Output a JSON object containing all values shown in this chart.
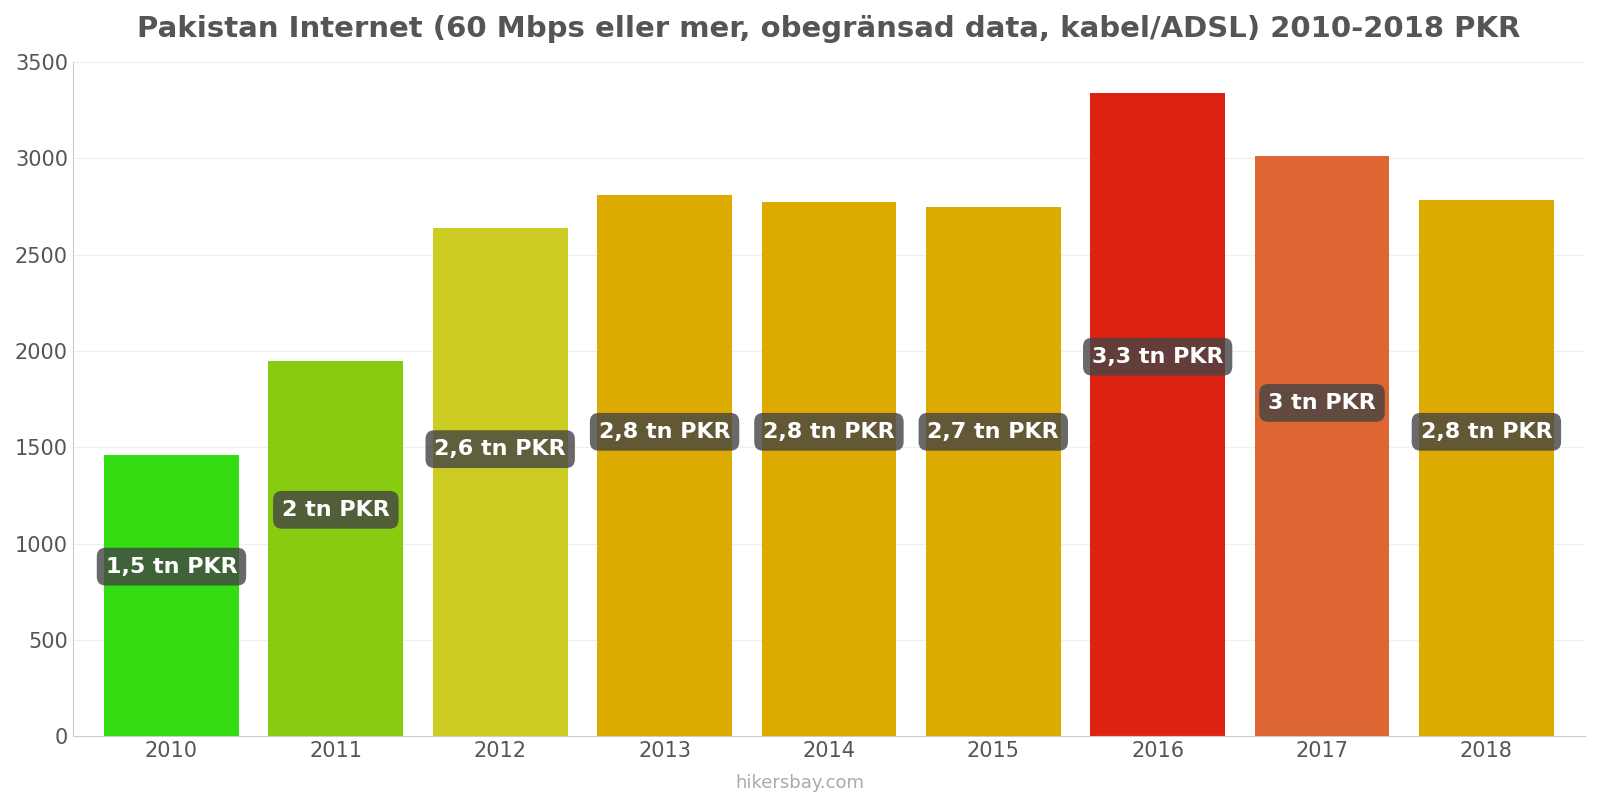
{
  "title": "Pakistan Internet (60 Mbps eller mer, obegränsad data, kabel/ADSL) 2010-2018 PKR",
  "years": [
    2010,
    2011,
    2012,
    2013,
    2014,
    2015,
    2016,
    2017,
    2018
  ],
  "values": [
    1460,
    1950,
    2640,
    2810,
    2775,
    2745,
    3340,
    3010,
    2785
  ],
  "bar_colors": [
    "#33dd11",
    "#88cc11",
    "#cccc22",
    "#ddaa00",
    "#ddaa00",
    "#ddaa00",
    "#dd2211",
    "#dd6633",
    "#ddaa00"
  ],
  "labels": [
    "1,5 tn PKR",
    "2 tn PKR",
    "2,6 tn PKR",
    "2,8 tn PKR",
    "2,8 tn PKR",
    "2,7 tn PKR",
    "3,3 tn PKR",
    "3 tn PKR",
    "2,8 tn PKR"
  ],
  "label_y_positions": [
    880,
    1175,
    1490,
    1580,
    1580,
    1580,
    1970,
    1730,
    1580
  ],
  "ylim": [
    0,
    3500
  ],
  "yticks": [
    0,
    500,
    1000,
    1500,
    2000,
    2500,
    3000,
    3500
  ],
  "footer": "hikersbay.com",
  "title_fontsize": 21,
  "label_fontsize": 16,
  "tick_fontsize": 15,
  "footer_fontsize": 13,
  "title_color": "#555555",
  "tick_color": "#555555"
}
